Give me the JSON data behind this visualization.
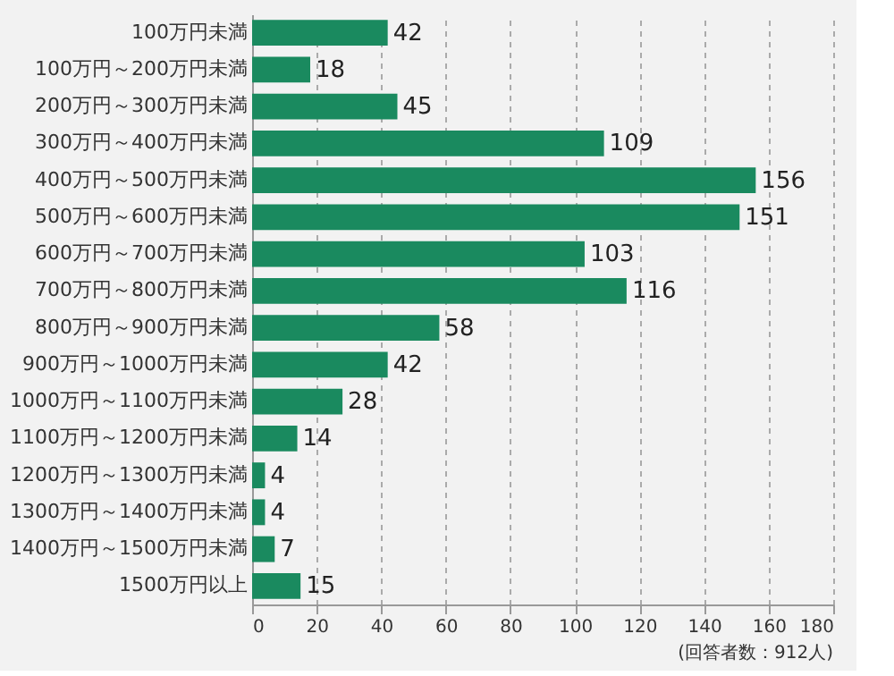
{
  "chart_data": {
    "type": "bar",
    "orientation": "horizontal",
    "categories": [
      "100万円未満",
      "100万円～200万円未満",
      "200万円～300万円未満",
      "300万円～400万円未満",
      "400万円～500万円未満",
      "500万円～600万円未満",
      "600万円～700万円未満",
      "700万円～800万円未満",
      "800万円～900万円未満",
      "900万円～1000万円未満",
      "1000万円～1100万円未満",
      "1100万円～1200万円未満",
      "1200万円～1300万円未満",
      "1300万円～1400万円未満",
      "1400万円～1500万円未満",
      "1500万円以上"
    ],
    "values": [
      42,
      18,
      45,
      109,
      156,
      151,
      103,
      116,
      58,
      42,
      28,
      14,
      4,
      4,
      7,
      15
    ],
    "color": "#1a8a5f",
    "xlim": [
      0,
      180
    ],
    "xticks": [
      0,
      20,
      40,
      60,
      80,
      100,
      120,
      140,
      160,
      180
    ],
    "grid": "x",
    "data_labels": true,
    "annotations": [
      "(回答者数：912人)"
    ]
  }
}
